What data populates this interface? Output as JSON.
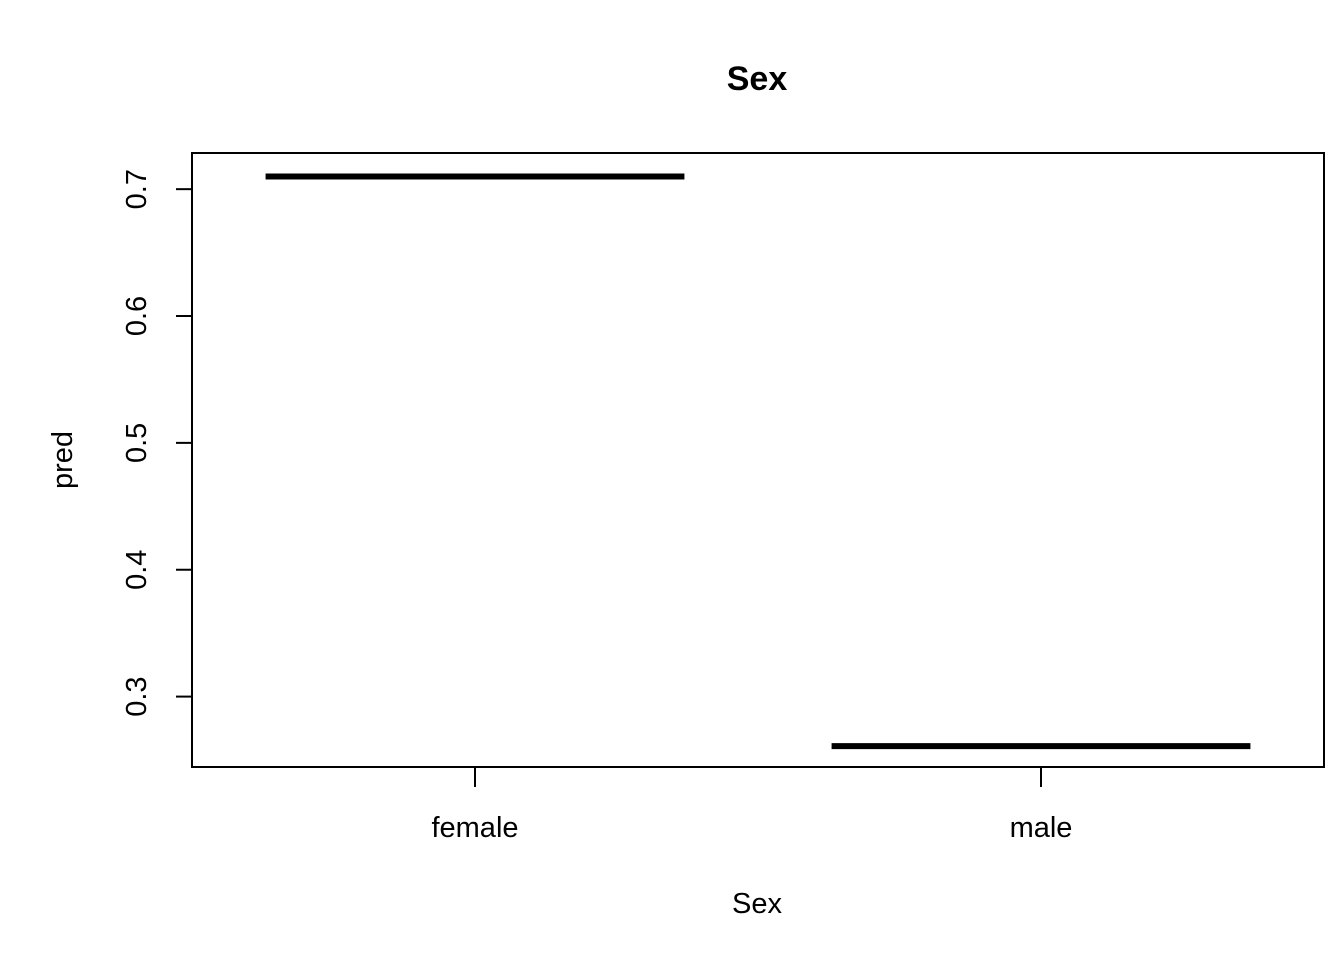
{
  "chart_data": {
    "type": "bar",
    "title": "Sex",
    "xlabel": "Sex",
    "ylabel": "pred",
    "categories": [
      "female",
      "male"
    ],
    "values": [
      0.71,
      0.261
    ],
    "ylim": [
      0.2445,
      0.7285
    ],
    "yticks": [
      {
        "value": 0.3,
        "label": "0.3"
      },
      {
        "value": 0.4,
        "label": "0.4"
      },
      {
        "value": 0.5,
        "label": "0.5"
      },
      {
        "value": 0.6,
        "label": "0.6"
      },
      {
        "value": 0.7,
        "label": "0.7"
      }
    ],
    "grid": false,
    "legend": "none",
    "mark_style": "horizontal level segments",
    "color": "#000000"
  }
}
